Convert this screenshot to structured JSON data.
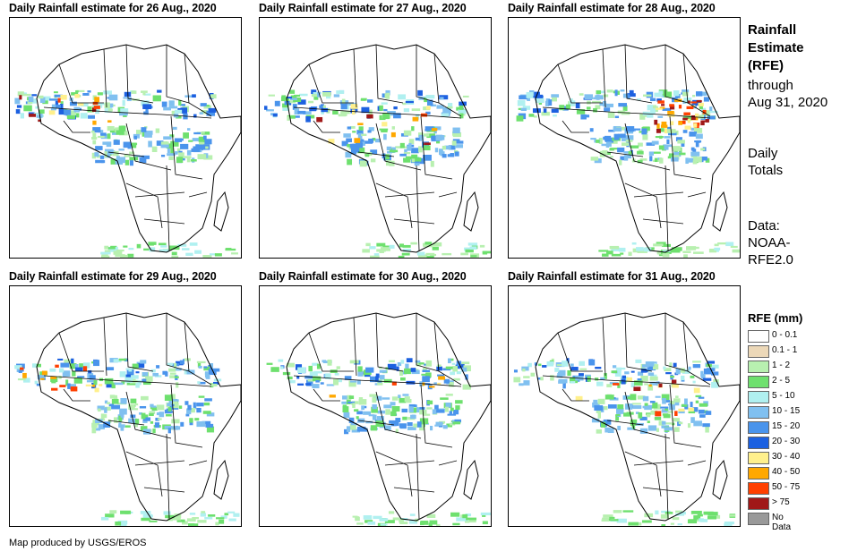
{
  "panels": [
    {
      "title": "Daily Rainfall estimate for 26 Aug., 2020",
      "intensity": "moderate-west"
    },
    {
      "title": "Daily Rainfall estimate for 27 Aug., 2020",
      "intensity": "moderate-central"
    },
    {
      "title": "Daily Rainfall estimate for 28 Aug., 2020",
      "intensity": "heavy-east"
    },
    {
      "title": "Daily Rainfall estimate for 29 Aug., 2020",
      "intensity": "moderate-west"
    },
    {
      "title": "Daily Rainfall estimate for 30 Aug., 2020",
      "intensity": "light"
    },
    {
      "title": "Daily Rainfall estimate for 31 Aug., 2020",
      "intensity": "moderate-central"
    }
  ],
  "sidebar": {
    "title_lines": [
      "Rainfall",
      "Estimate",
      "(RFE)"
    ],
    "through_lines": [
      "through",
      "Aug 31, 2020"
    ],
    "daily_lines": [
      "Daily",
      "Totals"
    ],
    "data_lines": [
      "Data:",
      "NOAA-",
      "RFE2.0"
    ]
  },
  "legend": {
    "title": "RFE (mm)",
    "items": [
      {
        "label": "0 - 0.1",
        "color": "#ffffff"
      },
      {
        "label": "0.1 - 1",
        "color": "#ecd8b8"
      },
      {
        "label": "1 - 2",
        "color": "#b8f0b0"
      },
      {
        "label": "2 - 5",
        "color": "#6ee06e"
      },
      {
        "label": "5 - 10",
        "color": "#b0f0f0"
      },
      {
        "label": "10 - 15",
        "color": "#80c0f0"
      },
      {
        "label": "15 - 20",
        "color": "#4a94ec"
      },
      {
        "label": "20 - 30",
        "color": "#1c60e0"
      },
      {
        "label": "30 - 40",
        "color": "#fff08c"
      },
      {
        "label": "40 - 50",
        "color": "#ffa800"
      },
      {
        "label": "50 - 75",
        "color": "#ff4000"
      },
      {
        "label": "> 75",
        "color": "#a01818"
      },
      {
        "label": "No Data",
        "color": "#999999"
      }
    ]
  },
  "footer": "Map produced by USGS/EROS"
}
